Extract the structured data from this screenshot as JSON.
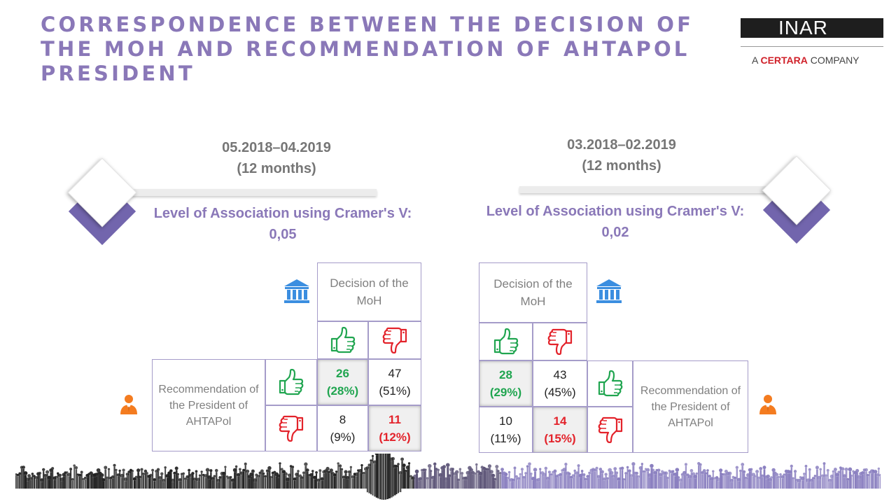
{
  "title": "CORRESPONDENCE BETWEEN THE DECISION OF THE MOH AND RECOMMENDATION OF AHTAPOL PRESIDENT",
  "logo": {
    "name": "INAR",
    "sub_prefix": "A ",
    "sub_brand": "CERTARA",
    "sub_suffix": " COMPANY"
  },
  "colors": {
    "title": "#8a78b8",
    "accent": "#7265ad",
    "green": "#20a550",
    "red": "#e3232b",
    "blue": "#3b8ee0",
    "orange": "#f47c20"
  },
  "left": {
    "period": "05.2018–04.2019",
    "duration": "(12 months)",
    "assoc_label": "Level of Association using Cramer's V:",
    "assoc_value": "0,05",
    "header": "Decision of the MoH",
    "row_label": "Recommendation of the President of AHTAPol",
    "cells": {
      "agree_agree": {
        "n": "26",
        "pct": "(28%)"
      },
      "agree_disagree": {
        "n": "47",
        "pct": "(51%)"
      },
      "disagree_agree": {
        "n": "8",
        "pct": "(9%)"
      },
      "disagree_disagree": {
        "n": "11",
        "pct": "(12%)"
      }
    }
  },
  "right": {
    "period": "03.2018–02.2019",
    "duration": "(12 months)",
    "assoc_label": "Level of Association using Cramer's V:",
    "assoc_value": "0,02",
    "header": "Decision of the MoH",
    "row_label": "Recommendation of the President of AHTAPol",
    "cells": {
      "agree_agree": {
        "n": "28",
        "pct": "(29%)"
      },
      "agree_disagree": {
        "n": "43",
        "pct": "(45%)"
      },
      "disagree_agree": {
        "n": "10",
        "pct": "(11%)"
      },
      "disagree_disagree": {
        "n": "14",
        "pct": "(15%)"
      }
    }
  },
  "icons": [
    "institution-icon",
    "person-icon",
    "thumbs-up-icon",
    "thumbs-down-icon",
    "crowd-silhouette"
  ]
}
